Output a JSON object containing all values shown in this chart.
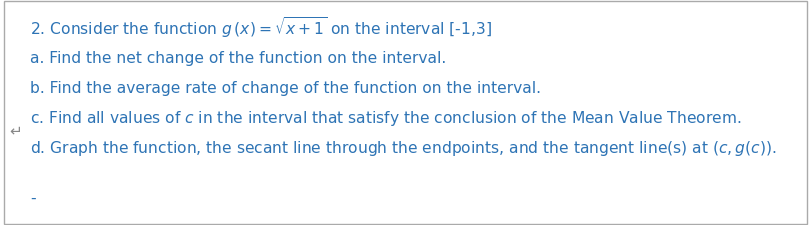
{
  "title_line": "2. Consider the function $g\\,(x) = \\sqrt{x + 1}$ on the interval [-1,3]",
  "line_a": "a. Find the net change of the function on the interval.",
  "line_b": "b. Find the average rate of change of the function on the interval.",
  "line_c": "c. Find all values of $c$ in the interval that satisfy the conclusion of the Mean Value Theorem.",
  "line_d": "d. Graph the function, the secant line through the endpoints, and the tangent line(s) at $(c, g(c))$.",
  "dash": "-",
  "text_color": "#2E74B5",
  "bg_color": "#FFFFFF",
  "border_color": "#AAAAAA",
  "font_size": 11.2,
  "page_curl_color": "#888888"
}
